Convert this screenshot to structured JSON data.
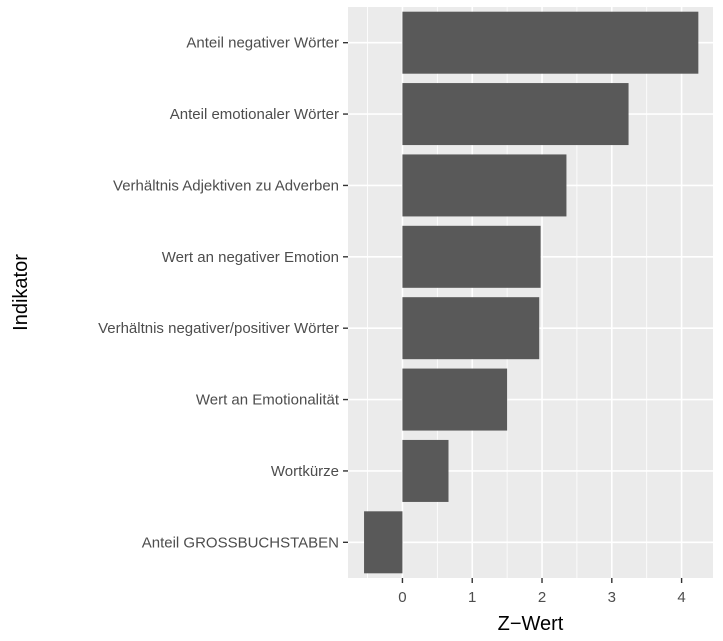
{
  "chart_data": {
    "type": "bar",
    "orientation": "horizontal",
    "title": "",
    "xlabel": "Z−Wert",
    "ylabel": "Indikator",
    "categories": [
      "Anteil negativer Wörter",
      "Anteil emotionaler Wörter",
      "Verhältnis Adjektiven zu Adverben",
      "Wert an negativer Emotion",
      "Verhältnis negativer/positiver Wörter",
      "Wert an Emotionalität",
      "Wortkürze",
      "Anteil GROSSBUCHSTABEN"
    ],
    "values": [
      4.24,
      3.24,
      2.35,
      1.98,
      1.96,
      1.5,
      0.66,
      -0.55
    ],
    "xlim": [
      -0.78,
      4.45
    ],
    "xticks": [
      0,
      1,
      2,
      3,
      4
    ],
    "grid": true,
    "legend": "none",
    "colors": {
      "bar": "#595959",
      "panel": "#ebebeb",
      "grid_major": "#ffffff",
      "tick_label": "#4d4d4d",
      "tick_mark": "#333333"
    }
  }
}
